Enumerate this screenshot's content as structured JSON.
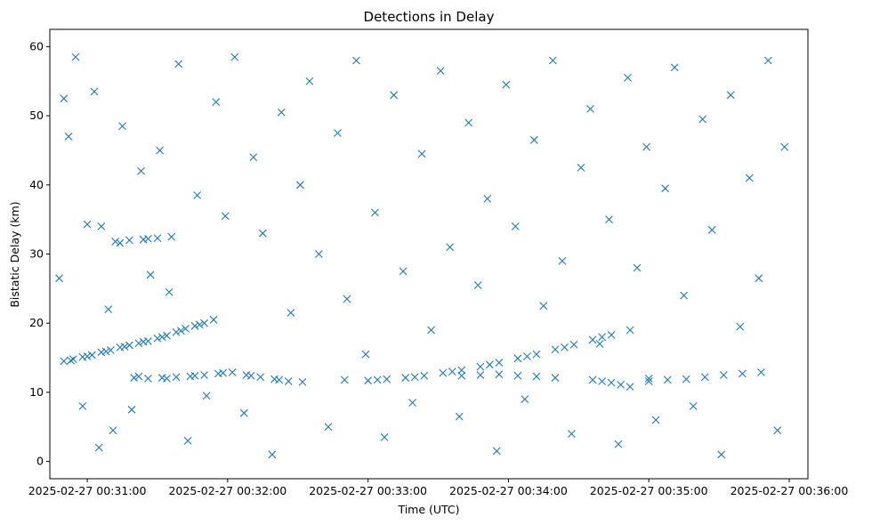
{
  "chart_data": {
    "type": "scatter",
    "title": "Detections in Delay",
    "xlabel": "Time (UTC)",
    "ylabel": "Bistatic Delay (km)",
    "marker": "x",
    "color": "#1f77b4",
    "grid": false,
    "xlim": [
      "2025-02-27 00:30:44",
      "2025-02-27 00:36:08"
    ],
    "ylim": [
      -2.5,
      62.5
    ],
    "x_ticks": [
      "2025-02-27 00:31:00",
      "2025-02-27 00:32:00",
      "2025-02-27 00:33:00",
      "2025-02-27 00:34:00",
      "2025-02-27 00:35:00",
      "2025-02-27 00:36:00"
    ],
    "y_ticks": [
      0,
      10,
      20,
      30,
      40,
      50,
      60
    ],
    "series": [
      {
        "note_points": "each point: [time (UTC, HH:MM:SS on 2025-02-27), bistatic delay km]",
        "points": [
          [
            "00:30:50",
            14.5
          ],
          [
            "00:30:54",
            14.8
          ],
          [
            "00:30:58",
            15.1
          ],
          [
            "00:31:02",
            15.4
          ],
          [
            "00:31:06",
            15.8
          ],
          [
            "00:31:10",
            16.1
          ],
          [
            "00:31:14",
            16.5
          ],
          [
            "00:31:18",
            16.8
          ],
          [
            "00:31:22",
            17.1
          ],
          [
            "00:31:26",
            17.4
          ],
          [
            "00:31:30",
            17.8
          ],
          [
            "00:31:34",
            18.2
          ],
          [
            "00:31:38",
            18.7
          ],
          [
            "00:31:42",
            19.2
          ],
          [
            "00:31:46",
            19.6
          ],
          [
            "00:31:50",
            20.0
          ],
          [
            "00:31:54",
            20.5
          ],
          [
            "00:30:53",
            14.6
          ],
          [
            "00:31:00",
            15.2
          ],
          [
            "00:31:08",
            15.9
          ],
          [
            "00:31:16",
            16.6
          ],
          [
            "00:31:24",
            17.3
          ],
          [
            "00:31:32",
            18.0
          ],
          [
            "00:31:40",
            18.9
          ],
          [
            "00:31:48",
            19.8
          ],
          [
            "00:31:20",
            12.1
          ],
          [
            "00:31:26",
            12.0
          ],
          [
            "00:31:32",
            12.1
          ],
          [
            "00:31:38",
            12.2
          ],
          [
            "00:31:44",
            12.3
          ],
          [
            "00:31:50",
            12.5
          ],
          [
            "00:31:56",
            12.7
          ],
          [
            "00:32:02",
            12.9
          ],
          [
            "00:32:08",
            12.5
          ],
          [
            "00:32:14",
            12.2
          ],
          [
            "00:32:20",
            11.9
          ],
          [
            "00:32:26",
            11.6
          ],
          [
            "00:32:32",
            11.5
          ],
          [
            "00:31:22",
            12.3
          ],
          [
            "00:31:34",
            12.0
          ],
          [
            "00:31:46",
            12.4
          ],
          [
            "00:31:58",
            12.8
          ],
          [
            "00:32:10",
            12.4
          ],
          [
            "00:32:22",
            11.8
          ],
          [
            "00:31:12",
            31.8
          ],
          [
            "00:31:18",
            32.0
          ],
          [
            "00:31:24",
            32.1
          ],
          [
            "00:31:30",
            32.3
          ],
          [
            "00:31:36",
            32.5
          ],
          [
            "00:31:14",
            31.6
          ],
          [
            "00:31:26",
            32.2
          ],
          [
            "00:31:00",
            34.3
          ],
          [
            "00:31:06",
            34.0
          ],
          [
            "00:33:00",
            11.7
          ],
          [
            "00:33:08",
            11.9
          ],
          [
            "00:33:16",
            12.1
          ],
          [
            "00:33:24",
            12.4
          ],
          [
            "00:33:32",
            12.8
          ],
          [
            "00:33:40",
            13.2
          ],
          [
            "00:33:48",
            13.7
          ],
          [
            "00:33:56",
            14.3
          ],
          [
            "00:34:04",
            14.9
          ],
          [
            "00:34:12",
            15.5
          ],
          [
            "00:34:20",
            16.2
          ],
          [
            "00:34:28",
            16.9
          ],
          [
            "00:34:36",
            17.6
          ],
          [
            "00:34:44",
            18.3
          ],
          [
            "00:34:52",
            19.0
          ],
          [
            "00:35:00",
            11.6
          ],
          [
            "00:32:50",
            11.8
          ],
          [
            "00:33:04",
            11.8
          ],
          [
            "00:33:20",
            12.2
          ],
          [
            "00:33:36",
            13.0
          ],
          [
            "00:33:52",
            14.0
          ],
          [
            "00:34:08",
            15.2
          ],
          [
            "00:34:24",
            16.5
          ],
          [
            "00:34:40",
            18.0
          ],
          [
            "00:33:40",
            12.4
          ],
          [
            "00:33:48",
            12.5
          ],
          [
            "00:33:56",
            12.6
          ],
          [
            "00:34:04",
            12.4
          ],
          [
            "00:34:12",
            12.3
          ],
          [
            "00:34:20",
            12.1
          ],
          [
            "00:34:36",
            11.8
          ],
          [
            "00:34:40",
            11.6
          ],
          [
            "00:34:44",
            11.4
          ],
          [
            "00:34:48",
            11.1
          ],
          [
            "00:34:52",
            10.8
          ],
          [
            "00:35:00",
            12.0
          ],
          [
            "00:35:08",
            11.8
          ],
          [
            "00:35:16",
            11.9
          ],
          [
            "00:35:24",
            12.2
          ],
          [
            "00:35:32",
            12.5
          ],
          [
            "00:35:40",
            12.7
          ],
          [
            "00:35:48",
            12.9
          ],
          [
            "00:30:48",
            26.5
          ],
          [
            "00:30:50",
            52.5
          ],
          [
            "00:30:52",
            47.0
          ],
          [
            "00:30:55",
            58.5
          ],
          [
            "00:30:58",
            8.0
          ],
          [
            "00:31:03",
            53.5
          ],
          [
            "00:31:05",
            2.0
          ],
          [
            "00:31:09",
            22.0
          ],
          [
            "00:31:11",
            4.5
          ],
          [
            "00:31:15",
            48.5
          ],
          [
            "00:31:19",
            7.5
          ],
          [
            "00:31:23",
            42.0
          ],
          [
            "00:31:27",
            27.0
          ],
          [
            "00:31:31",
            45.0
          ],
          [
            "00:31:35",
            24.5
          ],
          [
            "00:31:39",
            57.5
          ],
          [
            "00:31:43",
            3.0
          ],
          [
            "00:31:47",
            38.5
          ],
          [
            "00:31:51",
            9.5
          ],
          [
            "00:31:55",
            52.0
          ],
          [
            "00:31:59",
            35.5
          ],
          [
            "00:32:03",
            58.5
          ],
          [
            "00:32:07",
            7.0
          ],
          [
            "00:32:11",
            44.0
          ],
          [
            "00:32:15",
            33.0
          ],
          [
            "00:32:19",
            1.0
          ],
          [
            "00:32:23",
            50.5
          ],
          [
            "00:32:27",
            21.5
          ],
          [
            "00:32:31",
            40.0
          ],
          [
            "00:32:35",
            55.0
          ],
          [
            "00:32:39",
            30.0
          ],
          [
            "00:32:43",
            5.0
          ],
          [
            "00:32:47",
            47.5
          ],
          [
            "00:32:51",
            23.5
          ],
          [
            "00:32:55",
            58.0
          ],
          [
            "00:32:59",
            15.5
          ],
          [
            "00:33:03",
            36.0
          ],
          [
            "00:33:07",
            3.5
          ],
          [
            "00:33:11",
            53.0
          ],
          [
            "00:33:15",
            27.5
          ],
          [
            "00:33:19",
            8.5
          ],
          [
            "00:33:23",
            44.5
          ],
          [
            "00:33:27",
            19.0
          ],
          [
            "00:33:31",
            56.5
          ],
          [
            "00:33:35",
            31.0
          ],
          [
            "00:33:39",
            6.5
          ],
          [
            "00:33:43",
            49.0
          ],
          [
            "00:33:47",
            25.5
          ],
          [
            "00:33:51",
            38.0
          ],
          [
            "00:33:55",
            1.5
          ],
          [
            "00:33:59",
            54.5
          ],
          [
            "00:34:03",
            34.0
          ],
          [
            "00:34:07",
            9.0
          ],
          [
            "00:34:11",
            46.5
          ],
          [
            "00:34:15",
            22.5
          ],
          [
            "00:34:19",
            58.0
          ],
          [
            "00:34:23",
            29.0
          ],
          [
            "00:34:27",
            4.0
          ],
          [
            "00:34:31",
            42.5
          ],
          [
            "00:34:35",
            51.0
          ],
          [
            "00:34:39",
            17.0
          ],
          [
            "00:34:43",
            35.0
          ],
          [
            "00:34:47",
            2.5
          ],
          [
            "00:34:51",
            55.5
          ],
          [
            "00:34:55",
            28.0
          ],
          [
            "00:34:59",
            45.5
          ],
          [
            "00:35:03",
            6.0
          ],
          [
            "00:35:07",
            39.5
          ],
          [
            "00:35:11",
            57.0
          ],
          [
            "00:35:15",
            24.0
          ],
          [
            "00:35:19",
            8.0
          ],
          [
            "00:35:23",
            49.5
          ],
          [
            "00:35:27",
            33.5
          ],
          [
            "00:35:31",
            1.0
          ],
          [
            "00:35:35",
            53.0
          ],
          [
            "00:35:39",
            19.5
          ],
          [
            "00:35:43",
            41.0
          ],
          [
            "00:35:47",
            26.5
          ],
          [
            "00:35:51",
            58.0
          ],
          [
            "00:35:55",
            4.5
          ],
          [
            "00:35:58",
            45.5
          ]
        ]
      }
    ]
  }
}
